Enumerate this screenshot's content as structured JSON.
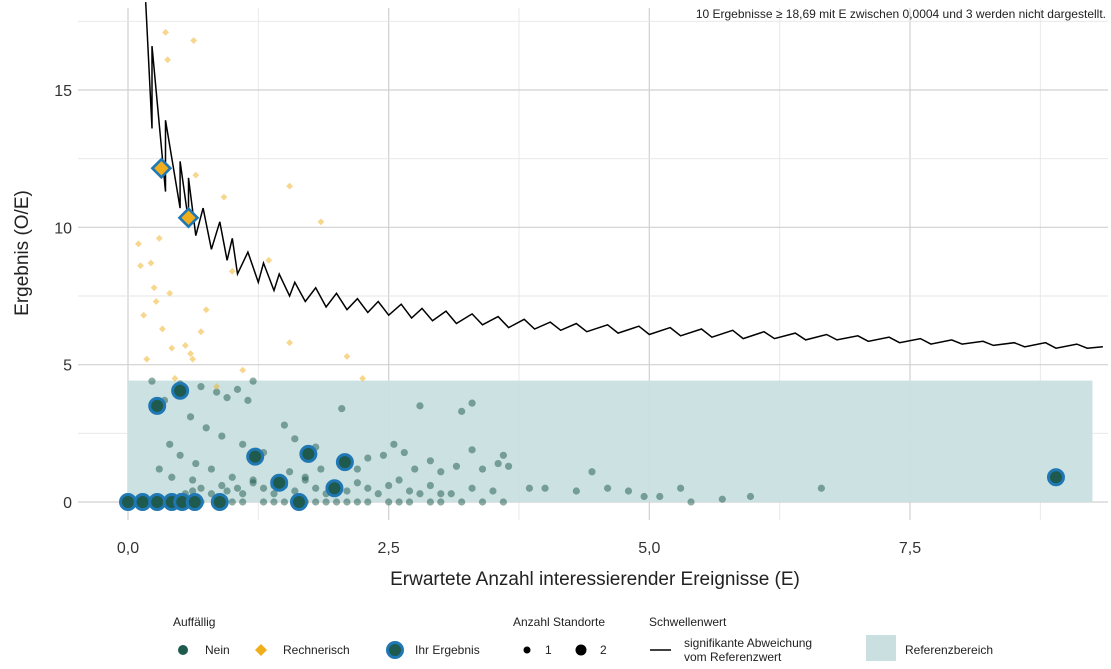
{
  "chart_data": {
    "type": "scatter",
    "xlabel": "Erwartete Anzahl interessierender Ereignisse (E)",
    "ylabel": "Ergebnis (O/E)",
    "xlim": [
      -0.1,
      9.35
    ],
    "ylim": [
      -0.5,
      18.2
    ],
    "x_ticks": [
      0,
      2.5,
      5,
      7.5
    ],
    "x_tick_labels": [
      "0,0",
      "2,5",
      "5,0",
      "7,5"
    ],
    "y_ticks": [
      0,
      5,
      10,
      15
    ],
    "y_tick_labels": [
      "0",
      "5",
      "10",
      "15"
    ],
    "grid": true,
    "note": "10 Ergebnisse ≥ 18,69 mit E zwischen 0,0004 und 3 werden nicht dargestellt.",
    "reference_range": {
      "x": [
        0,
        9.25
      ],
      "y": [
        0,
        4.42
      ]
    },
    "colors": {
      "nein": "#1e5a4e",
      "rechnerisch": "#f0ad1c",
      "ihr_ergebnis_ring": "#1f78b4",
      "reference": "#c9dfe0",
      "threshold": "#000000",
      "grid": "#d9d9d9"
    },
    "series": [
      {
        "name": "Nein",
        "points": [
          [
            0.5,
            0.2
          ],
          [
            0.55,
            0.3
          ],
          [
            0.62,
            0.4
          ],
          [
            0.7,
            0.5
          ],
          [
            0.8,
            0.3
          ],
          [
            0.9,
            0.6
          ],
          [
            0.95,
            0.4
          ],
          [
            1.05,
            0.5
          ],
          [
            1.1,
            0.3
          ],
          [
            1.2,
            0.7
          ],
          [
            1.3,
            0.5
          ],
          [
            1.4,
            0.3
          ],
          [
            1.5,
            0.6
          ],
          [
            1.6,
            0.4
          ],
          [
            1.7,
            0.8
          ],
          [
            1.8,
            0.5
          ],
          [
            1.9,
            0.3
          ],
          [
            2.0,
            0.6
          ],
          [
            2.1,
            0.4
          ],
          [
            2.2,
            0.7
          ],
          [
            2.3,
            0.5
          ],
          [
            2.4,
            0.3
          ],
          [
            2.5,
            0.6
          ],
          [
            2.6,
            0.8
          ],
          [
            2.7,
            0.4
          ],
          [
            2.8,
            0.3
          ],
          [
            2.9,
            0.6
          ],
          [
            3.0,
            0.3
          ],
          [
            3.1,
            0.3
          ],
          [
            3.3,
            0.5
          ],
          [
            3.5,
            0.4
          ],
          [
            1.55,
            1.1
          ],
          [
            1.7,
            0.9
          ],
          [
            1.85,
            1.2
          ],
          [
            2.05,
            1.5
          ],
          [
            2.2,
            1.2
          ],
          [
            2.3,
            1.6
          ],
          [
            2.45,
            1.7
          ],
          [
            2.55,
            2.1
          ],
          [
            2.65,
            1.8
          ],
          [
            2.75,
            1.2
          ],
          [
            2.9,
            1.5
          ],
          [
            3.0,
            1.1
          ],
          [
            3.15,
            1.3
          ],
          [
            3.3,
            1.9
          ],
          [
            3.4,
            1.2
          ],
          [
            3.55,
            1.4
          ],
          [
            3.6,
            1.7
          ],
          [
            3.65,
            1.3
          ],
          [
            3.2,
            3.3
          ],
          [
            3.3,
            3.6
          ],
          [
            2.8,
            3.5
          ],
          [
            2.05,
            3.4
          ],
          [
            1.5,
            2.8
          ],
          [
            1.6,
            2.3
          ],
          [
            1.8,
            2.0
          ],
          [
            3.85,
            0.5
          ],
          [
            4.0,
            0.5
          ],
          [
            4.3,
            0.4
          ],
          [
            4.45,
            1.1
          ],
          [
            4.6,
            0.5
          ],
          [
            4.8,
            0.4
          ],
          [
            4.95,
            0.2
          ],
          [
            5.1,
            0.2
          ],
          [
            5.3,
            0.5
          ],
          [
            5.4,
            0.0
          ],
          [
            5.7,
            0.1
          ],
          [
            5.97,
            0.2
          ],
          [
            6.65,
            0.5
          ],
          [
            0.23,
            4.4
          ],
          [
            0.35,
            3.7
          ],
          [
            0.5,
            4.3
          ],
          [
            0.7,
            4.2
          ],
          [
            0.85,
            4.0
          ],
          [
            0.95,
            3.8
          ],
          [
            1.05,
            4.1
          ],
          [
            1.15,
            3.7
          ],
          [
            1.2,
            4.4
          ],
          [
            0.6,
            3.1
          ],
          [
            0.75,
            2.7
          ],
          [
            0.9,
            2.4
          ],
          [
            1.1,
            2.1
          ],
          [
            1.3,
            1.8
          ],
          [
            0.4,
            2.1
          ],
          [
            0.5,
            1.7
          ],
          [
            0.65,
            1.4
          ],
          [
            0.8,
            1.2
          ],
          [
            1.0,
            0.9
          ],
          [
            1.2,
            0.8
          ],
          [
            1.4,
            0.6
          ],
          [
            0.3,
            1.2
          ],
          [
            0.42,
            0.9
          ],
          [
            0.62,
            0.8
          ],
          [
            0.7,
            0.0
          ],
          [
            0.9,
            0.0
          ],
          [
            1.0,
            0.0
          ],
          [
            1.1,
            0.0
          ],
          [
            1.3,
            0.0
          ],
          [
            1.4,
            0.0
          ],
          [
            1.5,
            0.0
          ],
          [
            1.7,
            0.0
          ],
          [
            1.8,
            0.0
          ],
          [
            1.9,
            0.0
          ],
          [
            2.0,
            0.0
          ],
          [
            2.1,
            0.0
          ],
          [
            2.2,
            0.0
          ],
          [
            2.3,
            0.0
          ],
          [
            2.5,
            0.0
          ],
          [
            2.6,
            0.0
          ],
          [
            2.7,
            0.0
          ],
          [
            2.9,
            0.0
          ],
          [
            3.0,
            0.0
          ],
          [
            3.2,
            0.0
          ],
          [
            3.4,
            0.0
          ],
          [
            3.6,
            0.0
          ]
        ]
      },
      {
        "name": "Rechnerisch",
        "points": [
          [
            0.1,
            9.4
          ],
          [
            0.12,
            8.6
          ],
          [
            0.15,
            6.8
          ],
          [
            0.18,
            5.2
          ],
          [
            0.22,
            8.7
          ],
          [
            0.25,
            7.8
          ],
          [
            0.27,
            7.3
          ],
          [
            0.3,
            9.6
          ],
          [
            0.33,
            6.3
          ],
          [
            0.36,
            17.1
          ],
          [
            0.38,
            16.1
          ],
          [
            0.4,
            7.6
          ],
          [
            0.42,
            5.6
          ],
          [
            0.45,
            4.5
          ],
          [
            0.5,
            4.2
          ],
          [
            0.55,
            5.7
          ],
          [
            0.6,
            5.4
          ],
          [
            0.62,
            5.2
          ],
          [
            0.63,
            16.8
          ],
          [
            0.65,
            11.9
          ],
          [
            0.7,
            6.2
          ],
          [
            0.75,
            7.0
          ],
          [
            0.85,
            4.2
          ],
          [
            0.92,
            11.1
          ],
          [
            1.0,
            8.4
          ],
          [
            1.1,
            4.8
          ],
          [
            1.35,
            8.8
          ],
          [
            1.55,
            11.5
          ],
          [
            1.55,
            5.8
          ],
          [
            1.85,
            10.2
          ],
          [
            2.1,
            5.3
          ],
          [
            2.25,
            4.5
          ]
        ]
      },
      {
        "name": "Ihr Ergebnis",
        "points": [
          [
            0.0,
            0.0
          ],
          [
            0.14,
            0.0
          ],
          [
            0.28,
            0.0
          ],
          [
            0.42,
            0.0
          ],
          [
            0.52,
            0.0
          ],
          [
            0.64,
            0.0
          ],
          [
            0.88,
            0.0
          ],
          [
            1.64,
            0.0
          ],
          [
            0.28,
            3.5
          ],
          [
            0.5,
            4.05
          ],
          [
            1.22,
            1.65
          ],
          [
            1.45,
            0.7
          ],
          [
            1.73,
            1.75
          ],
          [
            2.08,
            1.45
          ],
          [
            1.98,
            0.5
          ],
          [
            8.9,
            0.9
          ]
        ],
        "rechnerisch_points": [
          [
            0.32,
            12.15
          ],
          [
            0.58,
            10.35
          ]
        ]
      }
    ],
    "threshold_line": {
      "name": "signifikante Abweichung vom Referenzwert",
      "points": [
        [
          0.17,
          18.2
        ],
        [
          0.23,
          13.6
        ],
        [
          0.23,
          16.6
        ],
        [
          0.36,
          11.3
        ],
        [
          0.36,
          13.9
        ],
        [
          0.5,
          10.7
        ],
        [
          0.5,
          12.4
        ],
        [
          0.58,
          10.2
        ],
        [
          0.58,
          11.8
        ],
        [
          0.65,
          9.7
        ],
        [
          0.72,
          10.7
        ],
        [
          0.8,
          9.2
        ],
        [
          0.88,
          10.2
        ],
        [
          0.95,
          8.8
        ],
        [
          1.0,
          9.6
        ],
        [
          1.05,
          8.3
        ],
        [
          1.15,
          9.1
        ],
        [
          1.25,
          8.0
        ],
        [
          1.3,
          8.7
        ],
        [
          1.4,
          7.7
        ],
        [
          1.45,
          8.3
        ],
        [
          1.55,
          7.5
        ],
        [
          1.6,
          8.0
        ],
        [
          1.7,
          7.3
        ],
        [
          1.8,
          7.8
        ],
        [
          1.9,
          7.1
        ],
        [
          2.0,
          7.6
        ],
        [
          2.1,
          7.0
        ],
        [
          2.2,
          7.4
        ],
        [
          2.3,
          6.9
        ],
        [
          2.4,
          7.3
        ],
        [
          2.5,
          6.8
        ],
        [
          2.62,
          7.2
        ],
        [
          2.72,
          6.7
        ],
        [
          2.82,
          7.05
        ],
        [
          2.92,
          6.6
        ],
        [
          3.05,
          6.95
        ],
        [
          3.15,
          6.5
        ],
        [
          3.3,
          6.85
        ],
        [
          3.4,
          6.45
        ],
        [
          3.55,
          6.75
        ],
        [
          3.65,
          6.35
        ],
        [
          3.8,
          6.65
        ],
        [
          3.9,
          6.3
        ],
        [
          4.05,
          6.55
        ],
        [
          4.15,
          6.25
        ],
        [
          4.3,
          6.5
        ],
        [
          4.4,
          6.2
        ],
        [
          4.6,
          6.45
        ],
        [
          4.7,
          6.15
        ],
        [
          4.9,
          6.4
        ],
        [
          5.0,
          6.1
        ],
        [
          5.2,
          6.35
        ],
        [
          5.3,
          6.05
        ],
        [
          5.5,
          6.3
        ],
        [
          5.6,
          6.0
        ],
        [
          5.8,
          6.25
        ],
        [
          5.9,
          5.95
        ],
        [
          6.1,
          6.2
        ],
        [
          6.2,
          5.95
        ],
        [
          6.4,
          6.15
        ],
        [
          6.5,
          5.9
        ],
        [
          6.7,
          6.1
        ],
        [
          6.8,
          5.9
        ],
        [
          7.0,
          6.05
        ],
        [
          7.1,
          5.85
        ],
        [
          7.3,
          6.0
        ],
        [
          7.4,
          5.8
        ],
        [
          7.6,
          5.95
        ],
        [
          7.7,
          5.75
        ],
        [
          7.9,
          5.9
        ],
        [
          8.0,
          5.75
        ],
        [
          8.2,
          5.85
        ],
        [
          8.3,
          5.7
        ],
        [
          8.5,
          5.8
        ],
        [
          8.6,
          5.65
        ],
        [
          8.8,
          5.8
        ],
        [
          8.9,
          5.6
        ],
        [
          9.1,
          5.75
        ],
        [
          9.2,
          5.6
        ],
        [
          9.35,
          5.65
        ]
      ]
    },
    "legend": {
      "auffaellig_title": "Auffällig",
      "nein": "Nein",
      "rechnerisch": "Rechnerisch",
      "ihr_ergebnis": "Ihr Ergebnis",
      "standorte_title": "Anzahl Standorte",
      "standorte_1": "1",
      "standorte_2": "2",
      "schwellenwert_title": "Schwellenwert",
      "schwellenwert_line1": "signifikante Abweichung",
      "schwellenwert_line2": "vom Referenzwert",
      "referenzbereich": "Referenzbereich"
    }
  }
}
